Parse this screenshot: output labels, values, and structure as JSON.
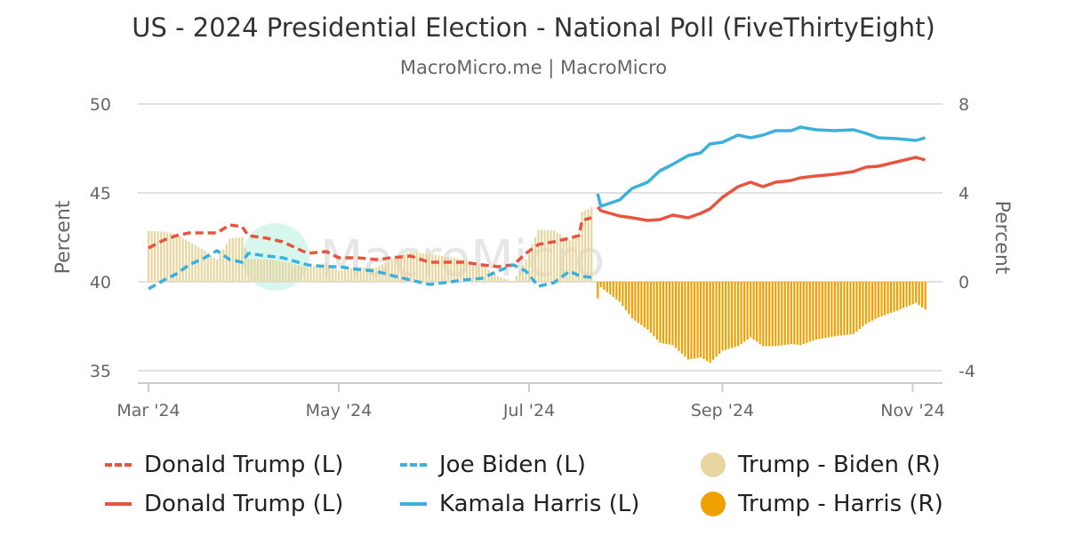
{
  "title": "US - 2024 Presidential Election - National Poll (FiveThirtyEight)",
  "subtitle": "MacroMicro.me | MacroMicro",
  "watermark": "MacroMicro",
  "chart_data": {
    "type": "line+bar",
    "title": "US - 2024 Presidential Election - National Poll (FiveThirtyEight)",
    "y_left": {
      "label": "Percent",
      "range": [
        35,
        50
      ],
      "ticks": [
        "35",
        "40",
        "45",
        "50"
      ]
    },
    "y_right": {
      "label": "Percent",
      "range": [
        -4,
        8
      ],
      "ticks": [
        "-4",
        "0",
        "4",
        "8"
      ]
    },
    "x": {
      "range": [
        "2024-02-29",
        "2024-11-10"
      ],
      "ticks": [
        {
          "date": "2024-03-01",
          "label": "Mar '24"
        },
        {
          "date": "2024-05-01",
          "label": "May '24"
        },
        {
          "date": "2024-07-01",
          "label": "Jul '24"
        },
        {
          "date": "2024-09-01",
          "label": "Sep '24"
        },
        {
          "date": "2024-11-01",
          "label": "Nov '24"
        }
      ]
    },
    "grid": true,
    "legend_position": "bottom",
    "series": [
      {
        "name": "Donald Trump (L)",
        "axis": "left",
        "style": "dashed",
        "color": "#e8553e",
        "dates": [
          "2024-03-01",
          "2024-03-06",
          "2024-03-10",
          "2024-03-14",
          "2024-03-19",
          "2024-03-23",
          "2024-03-27",
          "2024-03-31",
          "2024-04-02",
          "2024-04-08",
          "2024-04-13",
          "2024-04-21",
          "2024-04-27",
          "2024-05-01",
          "2024-05-07",
          "2024-05-13",
          "2024-05-18",
          "2024-05-24",
          "2024-05-30",
          "2024-06-04",
          "2024-06-10",
          "2024-06-16",
          "2024-06-21",
          "2024-06-26",
          "2024-06-30",
          "2024-07-04",
          "2024-07-09",
          "2024-07-14",
          "2024-07-17",
          "2024-07-18",
          "2024-07-21"
        ],
        "values": [
          41.9,
          42.35,
          42.6,
          42.75,
          42.75,
          42.75,
          43.2,
          43.1,
          42.6,
          42.45,
          42.25,
          41.6,
          41.7,
          41.35,
          41.35,
          41.25,
          41.35,
          41.45,
          41.1,
          41.1,
          41.1,
          40.95,
          40.85,
          40.95,
          41.6,
          42.1,
          42.25,
          42.45,
          42.6,
          43.45,
          43.6
        ]
      },
      {
        "name": "Joe Biden (L)",
        "axis": "left",
        "style": "dashed",
        "color": "#3cb0dc",
        "dates": [
          "2024-03-01",
          "2024-03-06",
          "2024-03-10",
          "2024-03-14",
          "2024-03-19",
          "2024-03-23",
          "2024-03-27",
          "2024-03-31",
          "2024-04-02",
          "2024-04-08",
          "2024-04-13",
          "2024-04-21",
          "2024-04-27",
          "2024-05-01",
          "2024-05-07",
          "2024-05-13",
          "2024-05-18",
          "2024-05-24",
          "2024-05-30",
          "2024-06-04",
          "2024-06-10",
          "2024-06-16",
          "2024-06-21",
          "2024-06-26",
          "2024-06-30",
          "2024-07-04",
          "2024-07-09",
          "2024-07-14",
          "2024-07-17",
          "2024-07-18",
          "2024-07-21"
        ],
        "values": [
          39.6,
          40.1,
          40.45,
          40.95,
          41.35,
          41.75,
          41.25,
          41.1,
          41.6,
          41.45,
          41.35,
          40.95,
          40.85,
          40.85,
          40.7,
          40.6,
          40.35,
          40.1,
          39.85,
          39.95,
          40.1,
          40.2,
          40.6,
          40.95,
          40.6,
          39.75,
          39.95,
          40.6,
          40.35,
          40.3,
          40.25
        ]
      },
      {
        "name": "Donald Trump (L)",
        "axis": "left",
        "style": "solid",
        "color": "#e8553e",
        "dates": [
          "2024-07-23",
          "2024-07-24",
          "2024-07-30",
          "2024-08-03",
          "2024-08-08",
          "2024-08-12",
          "2024-08-16",
          "2024-08-21",
          "2024-08-25",
          "2024-08-28",
          "2024-09-01",
          "2024-09-06",
          "2024-09-10",
          "2024-09-14",
          "2024-09-18",
          "2024-09-23",
          "2024-09-26",
          "2024-10-01",
          "2024-10-07",
          "2024-10-13",
          "2024-10-17",
          "2024-10-21",
          "2024-10-27",
          "2024-11-02",
          "2024-11-05"
        ],
        "values": [
          44.2,
          44.0,
          43.7,
          43.6,
          43.45,
          43.5,
          43.75,
          43.6,
          43.85,
          44.1,
          44.75,
          45.35,
          45.6,
          45.35,
          45.6,
          45.7,
          45.85,
          45.95,
          46.05,
          46.2,
          46.45,
          46.5,
          46.75,
          47.0,
          46.85
        ]
      },
      {
        "name": "Kamala Harris (L)",
        "axis": "left",
        "style": "solid",
        "color": "#3cb0dc",
        "dates": [
          "2024-07-23",
          "2024-07-24",
          "2024-07-30",
          "2024-08-03",
          "2024-08-08",
          "2024-08-12",
          "2024-08-16",
          "2024-08-21",
          "2024-08-25",
          "2024-08-28",
          "2024-09-01",
          "2024-09-06",
          "2024-09-10",
          "2024-09-14",
          "2024-09-18",
          "2024-09-23",
          "2024-09-26",
          "2024-10-01",
          "2024-10-07",
          "2024-10-13",
          "2024-10-17",
          "2024-10-21",
          "2024-10-27",
          "2024-11-02",
          "2024-11-05"
        ],
        "values": [
          44.95,
          44.25,
          44.6,
          45.25,
          45.6,
          46.25,
          46.6,
          47.1,
          47.25,
          47.75,
          47.85,
          48.25,
          48.1,
          48.25,
          48.5,
          48.5,
          48.7,
          48.55,
          48.5,
          48.55,
          48.35,
          48.1,
          48.05,
          47.95,
          48.1
        ]
      }
    ],
    "bars": [
      {
        "name": "Trump - Biden (R)",
        "axis": "right",
        "color": "#e8d6a0",
        "dates": [
          "2024-03-01",
          "2024-03-06",
          "2024-03-10",
          "2024-03-14",
          "2024-03-19",
          "2024-03-23",
          "2024-03-27",
          "2024-03-31",
          "2024-04-02",
          "2024-04-08",
          "2024-04-13",
          "2024-04-21",
          "2024-04-27",
          "2024-05-01",
          "2024-05-07",
          "2024-05-13",
          "2024-05-18",
          "2024-05-24",
          "2024-05-30",
          "2024-06-04",
          "2024-06-10",
          "2024-06-16",
          "2024-06-21",
          "2024-06-26",
          "2024-06-30",
          "2024-07-04",
          "2024-07-09",
          "2024-07-14",
          "2024-07-17",
          "2024-07-18",
          "2024-07-21"
        ],
        "values": [
          2.3,
          2.25,
          2.15,
          1.8,
          1.4,
          1.0,
          1.95,
          2.0,
          1.0,
          1.0,
          0.9,
          0.65,
          0.85,
          0.5,
          0.65,
          0.65,
          1.0,
          1.35,
          1.25,
          1.15,
          1.0,
          0.75,
          0.25,
          0.0,
          1.0,
          2.35,
          2.3,
          1.85,
          2.25,
          3.15,
          3.35
        ]
      },
      {
        "name": "Trump - Harris (R)",
        "axis": "right",
        "color": "#f0a000",
        "dates": [
          "2024-07-23",
          "2024-07-24",
          "2024-07-30",
          "2024-08-03",
          "2024-08-08",
          "2024-08-12",
          "2024-08-16",
          "2024-08-21",
          "2024-08-25",
          "2024-08-28",
          "2024-09-01",
          "2024-09-06",
          "2024-09-10",
          "2024-09-14",
          "2024-09-18",
          "2024-09-23",
          "2024-09-26",
          "2024-10-01",
          "2024-10-07",
          "2024-10-13",
          "2024-10-17",
          "2024-10-21",
          "2024-10-27",
          "2024-11-02",
          "2024-11-05"
        ],
        "values": [
          -0.75,
          -0.25,
          -0.9,
          -1.65,
          -2.15,
          -2.75,
          -2.85,
          -3.5,
          -3.4,
          -3.65,
          -3.1,
          -2.9,
          -2.5,
          -2.9,
          -2.9,
          -2.8,
          -2.85,
          -2.6,
          -2.45,
          -2.35,
          -1.9,
          -1.6,
          -1.3,
          -0.95,
          -1.25
        ]
      }
    ]
  }
}
